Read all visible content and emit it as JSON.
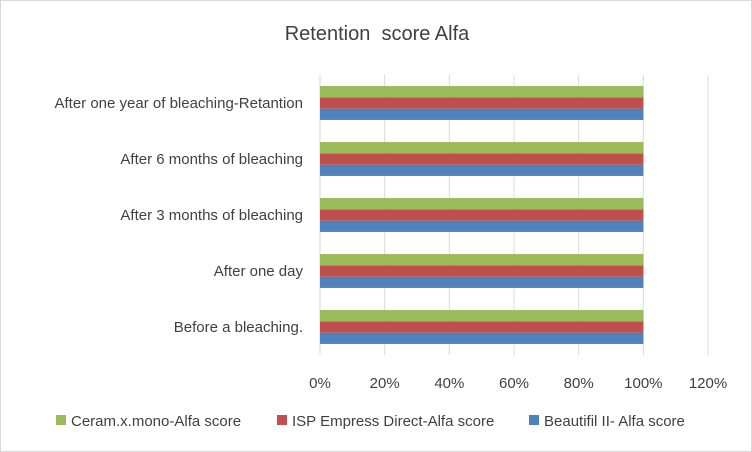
{
  "chart_data": {
    "type": "bar",
    "orientation": "horizontal",
    "title": "Retention  score Alfa",
    "categories": [
      "Before a bleaching.",
      "After one day",
      "After 3 months of bleaching",
      "After 6 months of bleaching",
      "After one year of bleaching-Retantion"
    ],
    "series": [
      {
        "name": "Beautifil II- Alfa score",
        "color": "#4f81bd",
        "values": [
          100,
          100,
          100,
          100,
          100
        ]
      },
      {
        "name": "ISP Empress Direct-Alfa score",
        "color": "#c0504d",
        "values": [
          100,
          100,
          100,
          100,
          100
        ]
      },
      {
        "name": "Ceram.x.mono-Alfa score",
        "color": "#9bbb59",
        "values": [
          100,
          100,
          100,
          100,
          100
        ]
      }
    ],
    "xlim": [
      0,
      120
    ],
    "xticks": [
      "0%",
      "20%",
      "40%",
      "60%",
      "80%",
      "100%",
      "120%"
    ],
    "xlabel": "",
    "ylabel": "",
    "grid": "vertical",
    "legend_position": "bottom"
  }
}
